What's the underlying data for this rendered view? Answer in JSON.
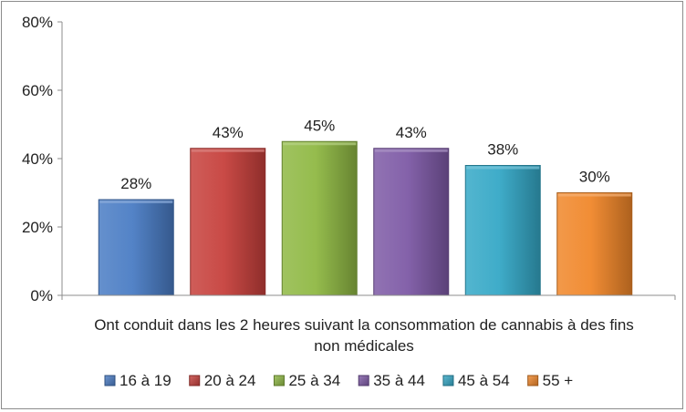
{
  "chart_data": {
    "type": "bar",
    "title": "",
    "xlabel": "Ont conduit dans les 2 heures suivant la consommation de cannabis à des fins non médicales",
    "xlabel_lines": [
      "Ont conduit dans les 2 heures suivant la consommation de cannabis à des fins",
      "non médicales"
    ],
    "ylabel": "",
    "ylim": [
      0,
      80
    ],
    "yticks": [
      "0%",
      "20%",
      "40%",
      "60%",
      "80%"
    ],
    "legend_position": "bottom",
    "grid": false,
    "series": [
      {
        "name": "16 à 19",
        "values": [
          28
        ],
        "label": "28%",
        "color": "#4a7cc4"
      },
      {
        "name": "20 à 24",
        "values": [
          43
        ],
        "label": "43%",
        "color": "#c6403c"
      },
      {
        "name": "25 à 34",
        "values": [
          45
        ],
        "label": "45%",
        "color": "#8fb844"
      },
      {
        "name": "35 à 44",
        "values": [
          43
        ],
        "label": "43%",
        "color": "#7e5aa6"
      },
      {
        "name": "45 à 54",
        "values": [
          38
        ],
        "label": "38%",
        "color": "#35a8c6"
      },
      {
        "name": "55 +",
        "values": [
          30
        ],
        "label": "30%",
        "color": "#f0872a"
      }
    ]
  }
}
